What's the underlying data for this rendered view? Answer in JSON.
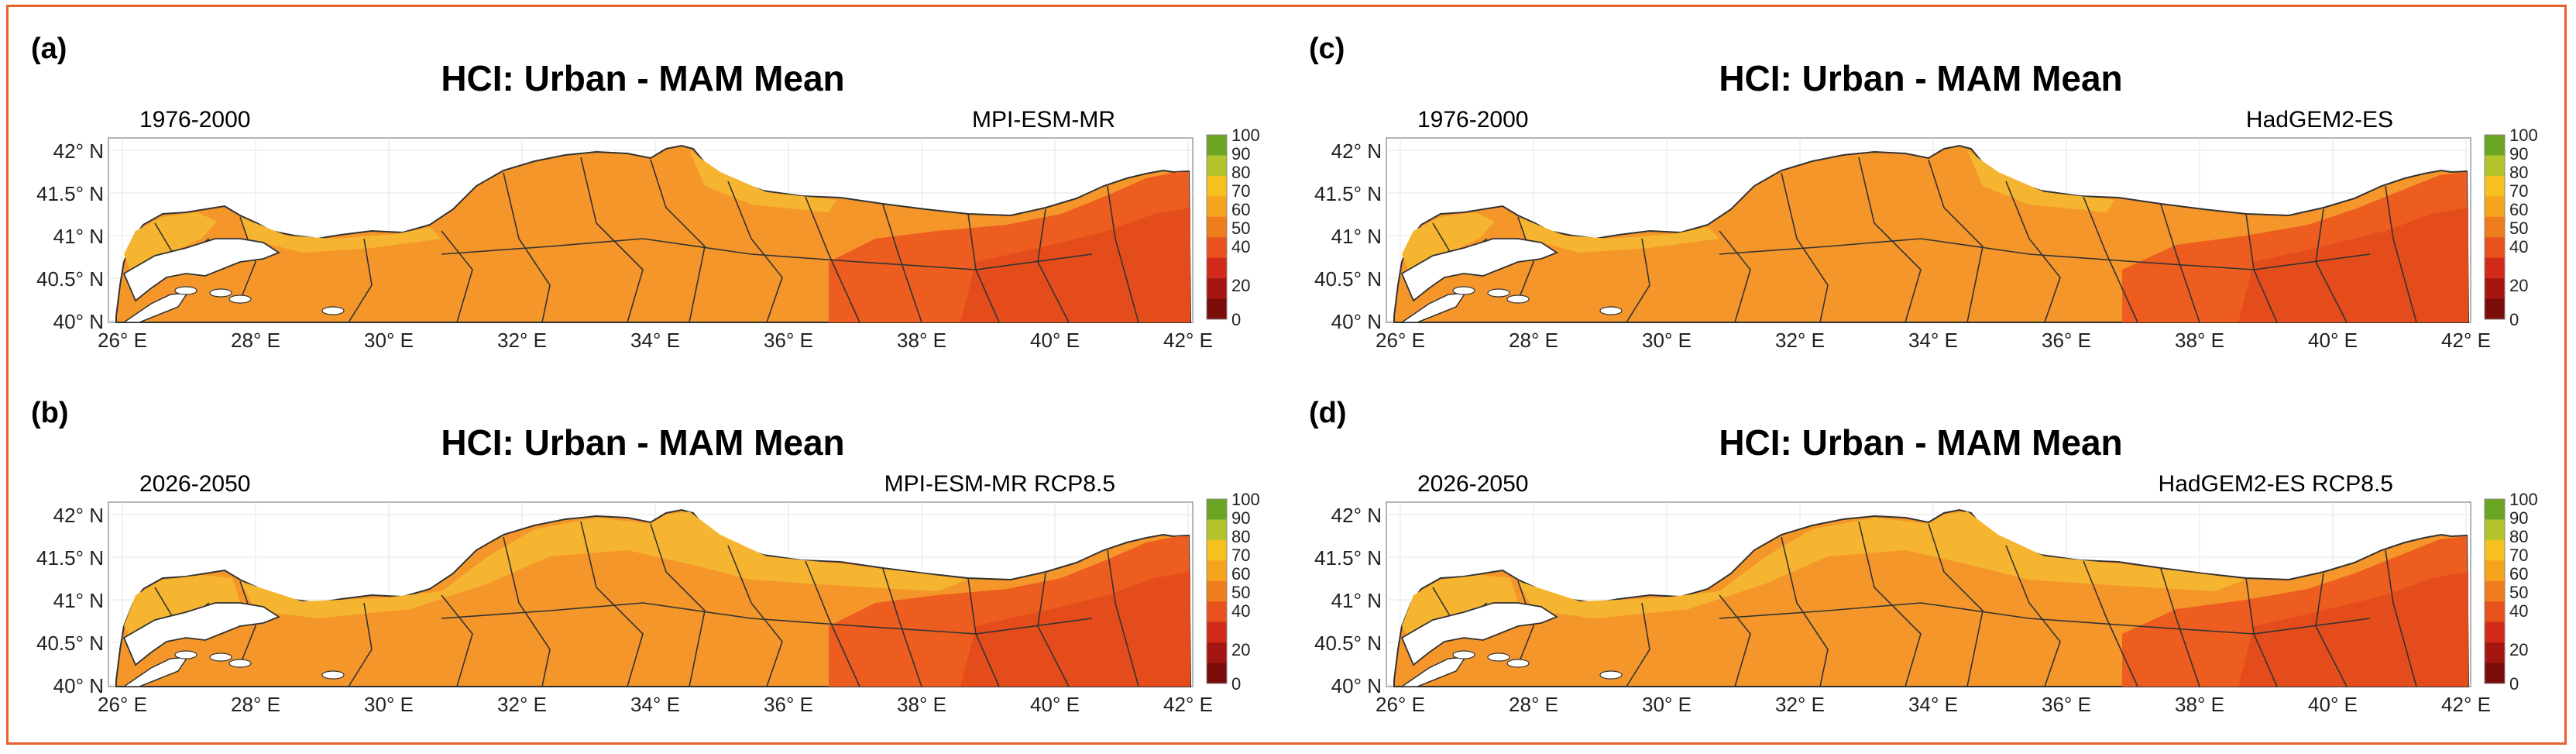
{
  "panels": [
    {
      "letter": "(a)",
      "title": "HCI: Urban - MAM Mean",
      "period": "1976-2000",
      "model": "MPI-ESM-MR"
    },
    {
      "letter": "(c)",
      "title": "HCI: Urban - MAM Mean",
      "period": "1976-2000",
      "model": "HadGEM2-ES"
    },
    {
      "letter": "(b)",
      "title": "HCI: Urban - MAM Mean",
      "period": "2026-2050",
      "model": "MPI-ESM-MR RCP8.5"
    },
    {
      "letter": "(d)",
      "title": "HCI: Urban - MAM Mean",
      "period": "2026-2050",
      "model": "HadGEM2-ES RCP8.5"
    }
  ],
  "axes": {
    "lat_ticks": [
      "42° N",
      "41.5° N",
      "41° N",
      "40.5° N",
      "40° N"
    ],
    "lon_ticks": [
      "26° E",
      "28° E",
      "30° E",
      "32° E",
      "34° E",
      "36° E",
      "38° E",
      "40° E",
      "42° E"
    ]
  },
  "colorbar": {
    "labels": [
      "100",
      "90",
      "80",
      "70",
      "60",
      "50",
      "40",
      "20",
      "0"
    ],
    "colors": [
      "#6aa524",
      "#b3c32a",
      "#f5c020",
      "#f6a31e",
      "#f07d1d",
      "#e8521c",
      "#d12a19",
      "#a51613",
      "#7a0c0a"
    ]
  },
  "palette": {
    "land_light": "#f6b530",
    "land_main": "#f4962a",
    "land_hot": "#ec5d1f",
    "sea": "#ffffff",
    "frame": "#e8602c"
  }
}
